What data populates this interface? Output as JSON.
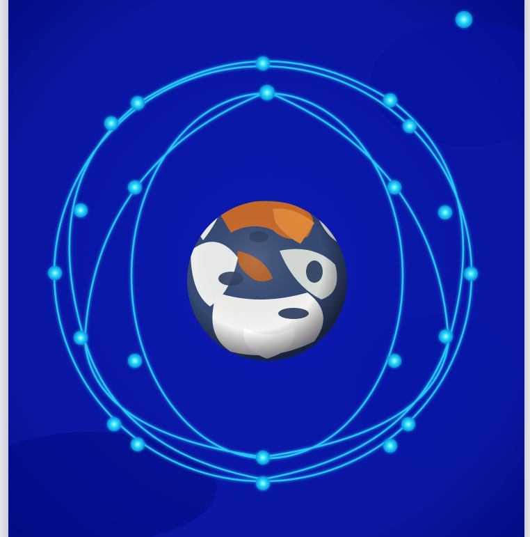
{
  "image": {
    "subject": "earth-with-satellite-constellation",
    "colors": {
      "space": "#0a17a6",
      "space_dark": "#020a78",
      "orbit": "#28c8ff",
      "satellite": "#22d8ff",
      "satellite_glow": "#7ff0ff",
      "earth_ocean": "#3a4f7a",
      "earth_cloud": "#f2f2f0",
      "earth_land": "#c86a2a"
    }
  }
}
